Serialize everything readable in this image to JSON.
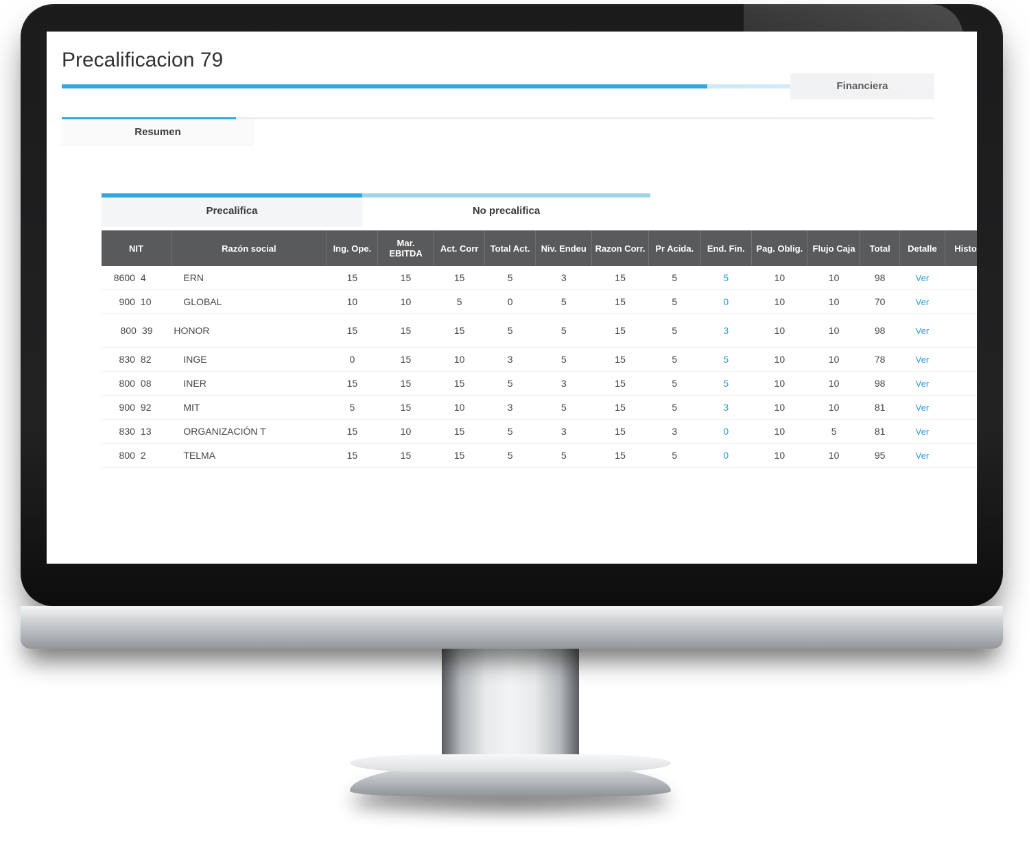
{
  "colors": {
    "accent": "#2fa8e0",
    "accent_light": "#9fd3ea",
    "header_bg": "#595a5b",
    "header_border": "#6e6f70",
    "link": "#2a9ed6",
    "monitor_body": "#1b1b1c",
    "screen_bg": "#ffffff"
  },
  "page": {
    "title": "Precalificacion 79"
  },
  "top_tab": {
    "label": "Financiera"
  },
  "sub_tab": {
    "label": "Resumen"
  },
  "filter_tabs": {
    "active": "Precalifica",
    "inactive": "No precalifica"
  },
  "table": {
    "columns": [
      {
        "key": "nit",
        "label": "NIT"
      },
      {
        "key": "razon",
        "label": "Razón social"
      },
      {
        "key": "ing",
        "label": "Ing. Ope."
      },
      {
        "key": "mar",
        "label": "Mar. EBITDA"
      },
      {
        "key": "act",
        "label": "Act. Corr"
      },
      {
        "key": "totact",
        "label": "Total Act."
      },
      {
        "key": "niv",
        "label": "Niv. Endeu"
      },
      {
        "key": "raz",
        "label": "Razon Corr."
      },
      {
        "key": "pr",
        "label": "Pr Acida."
      },
      {
        "key": "end",
        "label": "End. Fin."
      },
      {
        "key": "pag",
        "label": "Pag. Oblig."
      },
      {
        "key": "flujo",
        "label": "Flujo Caja"
      },
      {
        "key": "total",
        "label": "Total"
      },
      {
        "key": "detalle",
        "label": "Detalle"
      },
      {
        "key": "historial",
        "label": "Historial"
      }
    ],
    "link_text": "Ver",
    "highlight_values": {
      "end_fin": [
        0,
        3,
        5
      ]
    },
    "rows": [
      {
        "nit_a": "8600",
        "nit_b": "4",
        "razon": "ERN",
        "ing": 15,
        "mar": 15,
        "act": 15,
        "totact": 5,
        "niv": 3,
        "raz": 15,
        "pr": 5,
        "end": 5,
        "pag": 10,
        "flujo": 10,
        "total": 98
      },
      {
        "nit_a": "900",
        "nit_b": "10",
        "razon": "GLOBAL",
        "ing": 10,
        "mar": 10,
        "act": 5,
        "totact": 0,
        "niv": 5,
        "raz": 15,
        "pr": 5,
        "end": 0,
        "pag": 10,
        "flujo": 10,
        "total": 70
      },
      {
        "nit_a": "800",
        "nit_b": "39",
        "razon": "HONOR",
        "ing": 15,
        "mar": 15,
        "act": 15,
        "totact": 5,
        "niv": 5,
        "raz": 15,
        "pr": 5,
        "end": 3,
        "pag": 10,
        "flujo": 10,
        "total": 98
      },
      {
        "nit_a": "830",
        "nit_b": "82",
        "razon": "INGE",
        "ing": 0,
        "mar": 15,
        "act": 10,
        "totact": 3,
        "niv": 5,
        "raz": 15,
        "pr": 5,
        "end": 5,
        "pag": 10,
        "flujo": 10,
        "total": 78
      },
      {
        "nit_a": "800",
        "nit_b": "08",
        "razon": "INER",
        "ing": 15,
        "mar": 15,
        "act": 15,
        "totact": 5,
        "niv": 3,
        "raz": 15,
        "pr": 5,
        "end": 5,
        "pag": 10,
        "flujo": 10,
        "total": 98
      },
      {
        "nit_a": "900",
        "nit_b": "92",
        "razon": "MIT",
        "ing": 5,
        "mar": 15,
        "act": 10,
        "totact": 3,
        "niv": 5,
        "raz": 15,
        "pr": 5,
        "end": 3,
        "pag": 10,
        "flujo": 10,
        "total": 81
      },
      {
        "nit_a": "830",
        "nit_b": "13",
        "razon": "ORGANIZACIÓN T",
        "ing": 15,
        "mar": 10,
        "act": 15,
        "totact": 5,
        "niv": 3,
        "raz": 15,
        "pr": 3,
        "end": 0,
        "pag": 10,
        "flujo": 5,
        "total": 81
      },
      {
        "nit_a": "800",
        "nit_b": "2",
        "razon": "TELMA",
        "ing": 15,
        "mar": 15,
        "act": 15,
        "totact": 5,
        "niv": 5,
        "raz": 15,
        "pr": 5,
        "end": 0,
        "pag": 10,
        "flujo": 10,
        "total": 95
      }
    ]
  }
}
